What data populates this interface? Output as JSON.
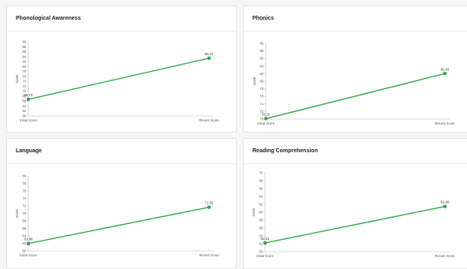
{
  "chart_data": [
    {
      "type": "line",
      "title": "Phonological Awareness",
      "ylabel": "score",
      "categories": [
        "Initial Score",
        "Recent Score"
      ],
      "values": [
        66.74,
        83.37
      ],
      "data_labels": [
        "66.74",
        "83.37"
      ],
      "ylim": [
        60,
        90
      ],
      "yticks": [
        60,
        62,
        64,
        66,
        68,
        70,
        72,
        74,
        76,
        78,
        80,
        82,
        84,
        86,
        88,
        90
      ],
      "color": "#2ea84f",
      "grid": false
    },
    {
      "type": "line",
      "title": "Phonics",
      "ylabel": "score",
      "categories": [
        "Initial Score",
        "Recent Score"
      ],
      "values": [
        70.12,
        82.03
      ],
      "data_labels": [
        "70.12",
        "82.03"
      ],
      "ylim": [
        70,
        90
      ],
      "yticks": [
        70,
        72,
        74,
        76,
        78,
        80,
        82,
        84,
        86,
        88,
        90
      ],
      "color": "#2ea84f",
      "grid": false
    },
    {
      "type": "line",
      "title": "Language",
      "ylabel": "score",
      "categories": [
        "Initial Score",
        "Recent Score"
      ],
      "values": [
        61.96,
        71.65
      ],
      "data_labels": [
        "61.96",
        "71.65"
      ],
      "ylim": [
        60,
        80
      ],
      "yticks": [
        60,
        62,
        64,
        66,
        68,
        70,
        72,
        74,
        76,
        78,
        80
      ],
      "color": "#2ea84f",
      "grid": false
    },
    {
      "type": "line",
      "title": "Reading Comprehension",
      "ylabel": "score",
      "categories": [
        "Initial Score",
        "Recent Score"
      ],
      "values": [
        52.21,
        61.46
      ],
      "data_labels": [
        "52.21",
        "61.46"
      ],
      "ylim": [
        50,
        70
      ],
      "yticks": [
        50,
        52,
        54,
        56,
        58,
        60,
        62,
        64,
        66,
        68,
        70
      ],
      "color": "#2ea84f",
      "grid": false
    }
  ]
}
